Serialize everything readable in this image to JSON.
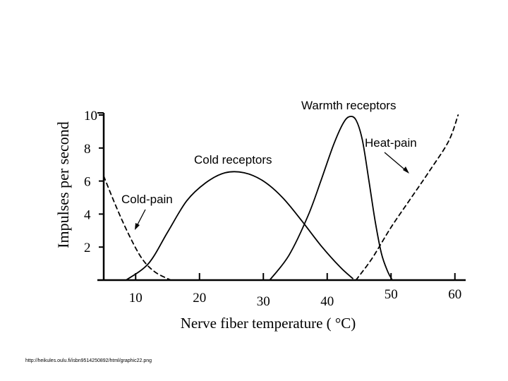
{
  "chart_data": {
    "type": "line",
    "xlabel": "Nerve fiber temperature ( °C)",
    "ylabel": "Impulses per second",
    "xlim": [
      5,
      60
    ],
    "ylim": [
      0,
      10
    ],
    "x_ticks": [
      "10",
      "20",
      "30",
      "40",
      "50",
      "60"
    ],
    "y_ticks": [
      "10",
      "8",
      "6",
      "4",
      "2"
    ],
    "series": [
      {
        "name": "Cold receptors",
        "style": "solid",
        "x": [
          8.5,
          12,
          15,
          18,
          21,
          24,
          27,
          30,
          33,
          36,
          39,
          42,
          44
        ],
        "y": [
          0,
          1.0,
          2.9,
          4.8,
          5.9,
          6.5,
          6.5,
          6.0,
          5.0,
          3.6,
          2.1,
          0.8,
          0.1
        ]
      },
      {
        "name": "Warmth receptors",
        "style": "solid",
        "x": [
          31,
          34,
          37,
          39,
          41,
          42.5,
          43.5,
          44.5,
          45.5,
          46.5,
          47.5,
          48.5,
          49.5,
          50.2
        ],
        "y": [
          0,
          1.5,
          3.9,
          6.0,
          8.2,
          9.5,
          9.9,
          9.7,
          8.5,
          6.1,
          3.6,
          1.6,
          0.5,
          0
        ]
      },
      {
        "name": "Cold-pain",
        "style": "dashed",
        "x": [
          5,
          7,
          9,
          11,
          13,
          15.5
        ],
        "y": [
          6.3,
          4.4,
          2.7,
          1.3,
          0.5,
          0
        ]
      },
      {
        "name": "Heat-pain",
        "style": "dashed",
        "x": [
          44.5,
          47,
          50,
          53,
          56,
          59,
          60.5
        ],
        "y": [
          0,
          1.3,
          3.2,
          4.9,
          6.6,
          8.4,
          10
        ]
      }
    ],
    "annotations": [
      {
        "text": "Warmth receptors"
      },
      {
        "text": "Heat-pain"
      },
      {
        "text": "Cold receptors"
      },
      {
        "text": "Cold-pain"
      }
    ]
  },
  "source_caption": "http://heikules.oulu.fi/isbn9514250892/html/graphic22.png"
}
